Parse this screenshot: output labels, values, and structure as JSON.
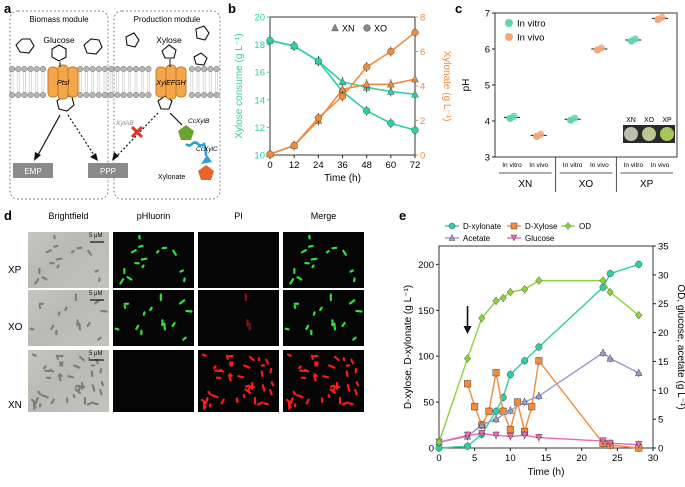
{
  "figure": {
    "panels": {
      "a": "a",
      "b": "b",
      "c": "c",
      "d": "d",
      "e": "e"
    }
  },
  "panel_a": {
    "biomass_module": "Biomass module",
    "production_module": "Production module",
    "glucose": "Glucose",
    "xylose": "Xylose",
    "transporter_left": "Ptsl",
    "transporter_right": "XylEFGH",
    "xylab": "XylAB",
    "ccxylb": "CcXylB",
    "ccxylc": "CcXylC",
    "xylonate": "Xylonate",
    "emp": "EMP",
    "ppp": "PPP",
    "colors": {
      "membrane": "#9e9e9e",
      "transporter": "#f4a64b",
      "box": "#8a8a8a",
      "cross": "#e0312a",
      "green": "#6aa42f",
      "blue": "#2f9fd8",
      "orange": "#e8642a"
    }
  },
  "panel_d": {
    "columns": [
      "Brightfield",
      "pHluorin",
      "PI",
      "Merge"
    ],
    "rows": [
      "XP",
      "XO",
      "XN"
    ],
    "scale_bar": "5 μM"
  },
  "chart_data": [
    {
      "id": "b",
      "type": "line",
      "x": [
        0,
        12,
        24,
        36,
        48,
        60,
        72
      ],
      "xlabel": "Time (h)",
      "ylabel_left": "Xylose consume (g L⁻¹)",
      "ylabel_right": "Xylonate (g L⁻¹)",
      "left_ylim": [
        10,
        20
      ],
      "right_ylim": [
        0,
        8
      ],
      "left_ticks": [
        10,
        12,
        14,
        16,
        18,
        20
      ],
      "right_ticks": [
        0,
        2,
        4,
        6,
        8
      ],
      "x_ticks": [
        0,
        12,
        24,
        36,
        48,
        60,
        72
      ],
      "legend": [
        "XN",
        "XO"
      ],
      "series": [
        {
          "name": "XN xylose",
          "axis": "left",
          "marker": "triangle",
          "color": "#2fcfa5",
          "values": [
            18.3,
            17.9,
            16.8,
            15.3,
            14.9,
            14.6,
            14.4
          ]
        },
        {
          "name": "XO xylose",
          "axis": "left",
          "marker": "circle",
          "color": "#2fcfa5",
          "values": [
            18.3,
            17.9,
            16.8,
            14.6,
            13.2,
            12.3,
            11.8
          ]
        },
        {
          "name": "XN xylonate",
          "axis": "right",
          "marker": "triangle",
          "color": "#f28b3a",
          "values": [
            0.05,
            0.55,
            2.0,
            3.8,
            4.1,
            4.1,
            4.4
          ]
        },
        {
          "name": "XO xylonate",
          "axis": "right",
          "marker": "circle",
          "color": "#f28b3a",
          "values": [
            0.05,
            0.55,
            2.15,
            3.4,
            5.1,
            6.0,
            7.1
          ]
        }
      ]
    },
    {
      "id": "c",
      "type": "scatter",
      "ylabel": "pH",
      "ylim": [
        3,
        7
      ],
      "y_ticks": [
        3,
        4,
        5,
        6,
        7
      ],
      "legend": [
        "In vitro",
        "In vivo"
      ],
      "colors": {
        "In vitro": "#5fd6ad",
        "In vivo": "#f4a57a"
      },
      "groups": [
        {
          "label": "XN",
          "conditions": [
            "In vitro",
            "In vivo"
          ],
          "values": [
            4.1,
            3.6
          ]
        },
        {
          "label": "XO",
          "conditions": [
            "In vitro",
            "In vivo"
          ],
          "values": [
            4.05,
            6.0
          ]
        },
        {
          "label": "XP",
          "conditions": [
            "In vitro",
            "In vivo"
          ],
          "values": [
            6.25,
            6.85
          ]
        }
      ],
      "inset_labels": [
        "XN",
        "XO",
        "XP"
      ]
    },
    {
      "id": "e",
      "type": "line",
      "xlabel": "Time (h)",
      "ylabel_left": "D-xylose, D-xylonate (g L⁻¹)",
      "ylabel_right": "OD, glucose, acetate (g L⁻¹)",
      "xlim": [
        0,
        30
      ],
      "left_ylim": [
        0,
        220
      ],
      "right_ylim": [
        0,
        35
      ],
      "x_ticks": [
        0,
        5,
        10,
        15,
        20,
        25,
        30
      ],
      "left_ticks": [
        0,
        50,
        100,
        150,
        200
      ],
      "right_ticks": [
        0,
        5,
        10,
        15,
        20,
        25,
        30,
        35
      ],
      "legend": [
        "D-xylonate",
        "D-Xylose",
        "Acetate",
        "Glucose",
        "OD"
      ],
      "series": [
        {
          "name": "D-xylonate",
          "axis": "left",
          "marker": "circle",
          "color": "#2fcfa5",
          "x": [
            0,
            4,
            6,
            8,
            9,
            10,
            12,
            14,
            23,
            24,
            28
          ],
          "values": [
            0,
            2,
            15,
            40,
            55,
            80,
            95,
            110,
            175,
            190,
            200
          ]
        },
        {
          "name": "D-Xylose",
          "axis": "left",
          "marker": "square",
          "color": "#f28b3a",
          "x": [
            4,
            5,
            6,
            7,
            8,
            9,
            10,
            11,
            12,
            13,
            14,
            23,
            24,
            28
          ],
          "values": [
            70,
            45,
            25,
            40,
            82,
            40,
            20,
            50,
            18,
            45,
            95,
            5,
            3,
            0
          ]
        },
        {
          "name": "Acetate",
          "axis": "right",
          "marker": "triangle",
          "color": "#9a9ad0",
          "x": [
            0,
            4,
            6,
            8,
            10,
            12,
            14,
            23,
            24,
            28
          ],
          "values": [
            1,
            2,
            4,
            5,
            6.5,
            8,
            9,
            16.5,
            15.5,
            13
          ]
        },
        {
          "name": "Glucose",
          "axis": "right",
          "marker": "triangle-down",
          "color": "#e86ab0",
          "x": [
            0,
            4,
            6,
            8,
            10,
            12,
            14,
            23,
            24,
            28
          ],
          "values": [
            1,
            2.2,
            2.5,
            2.2,
            2,
            2.2,
            1.8,
            1.2,
            0.8,
            0.6
          ]
        },
        {
          "name": "OD",
          "axis": "right",
          "marker": "diamond",
          "color": "#8bd23f",
          "x": [
            0,
            4,
            6,
            8,
            9,
            10,
            12,
            14,
            23,
            24,
            28
          ],
          "values": [
            1,
            15.5,
            22.5,
            25.5,
            26,
            27,
            27.5,
            29,
            29,
            27,
            23
          ]
        }
      ],
      "annotation": "arrow at 4 h"
    }
  ]
}
